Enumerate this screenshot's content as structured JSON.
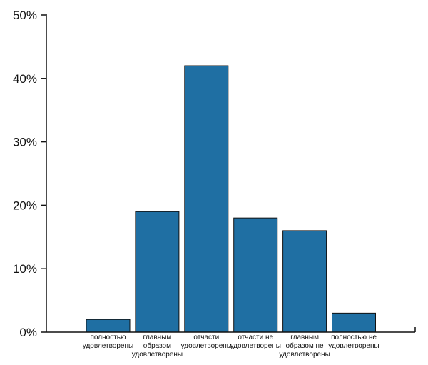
{
  "chart_data": {
    "type": "bar",
    "categories": [
      "полностью удовлетворены",
      "главным образом удовлетворены",
      "отчасти удовлетворены",
      "отчасти не удовлетворены",
      "главным образом не удовлетворены",
      "полностью не удовлетворены"
    ],
    "category_lines": [
      [
        "полностью",
        "удовлетворены"
      ],
      [
        "главным",
        "образом",
        "удовлетворены"
      ],
      [
        "отчасти",
        "удовлетворены"
      ],
      [
        "отчасти не",
        "удовлетворены"
      ],
      [
        "главным",
        "образом не",
        "удовлетворены"
      ],
      [
        "полностью не",
        "удовлетворены"
      ]
    ],
    "values": [
      2,
      19,
      42,
      18,
      16,
      3
    ],
    "unit": "%",
    "ylim": [
      0,
      50
    ],
    "yticks": [
      "0%",
      "10%",
      "20%",
      "30%",
      "40%",
      "50%"
    ],
    "title": "",
    "xlabel": "",
    "ylabel": "",
    "grid": false,
    "colors": {
      "bar": "#1f6fa3",
      "bar_edge": "#111111",
      "axis": "#111111"
    }
  }
}
